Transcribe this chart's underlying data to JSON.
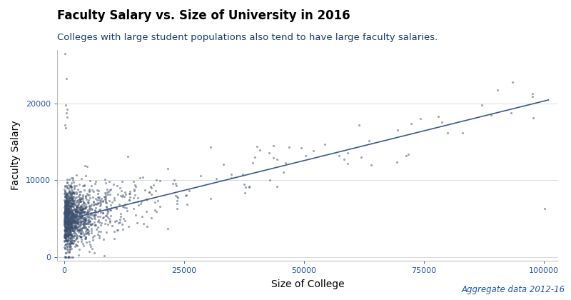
{
  "title": "Faculty Salary vs. Size of University in 2016",
  "subtitle": "Colleges with large student populations also tend to have large faculty salaries.",
  "xlabel": "Size of College",
  "ylabel": "Faculty Salary",
  "annotation": "Aggregate data 2012-16",
  "xlim": [
    -1500,
    103000
  ],
  "ylim": [
    -500,
    27000
  ],
  "xticks": [
    0,
    25000,
    50000,
    75000,
    100000
  ],
  "yticks": [
    0,
    10000,
    20000
  ],
  "scatter_color": "#3d4f6b",
  "scatter_alpha": 0.5,
  "scatter_size": 5,
  "line_color": "#3d5a8a",
  "line_intercept": 4800,
  "line_slope": 0.155,
  "background_color": "#ffffff",
  "title_color": "#000000",
  "subtitle_color": "#1a3a6b",
  "tick_color": "#2255aa",
  "label_color": "#000000",
  "annotation_color": "#2255aa",
  "seed": 42,
  "n_points": 1400
}
